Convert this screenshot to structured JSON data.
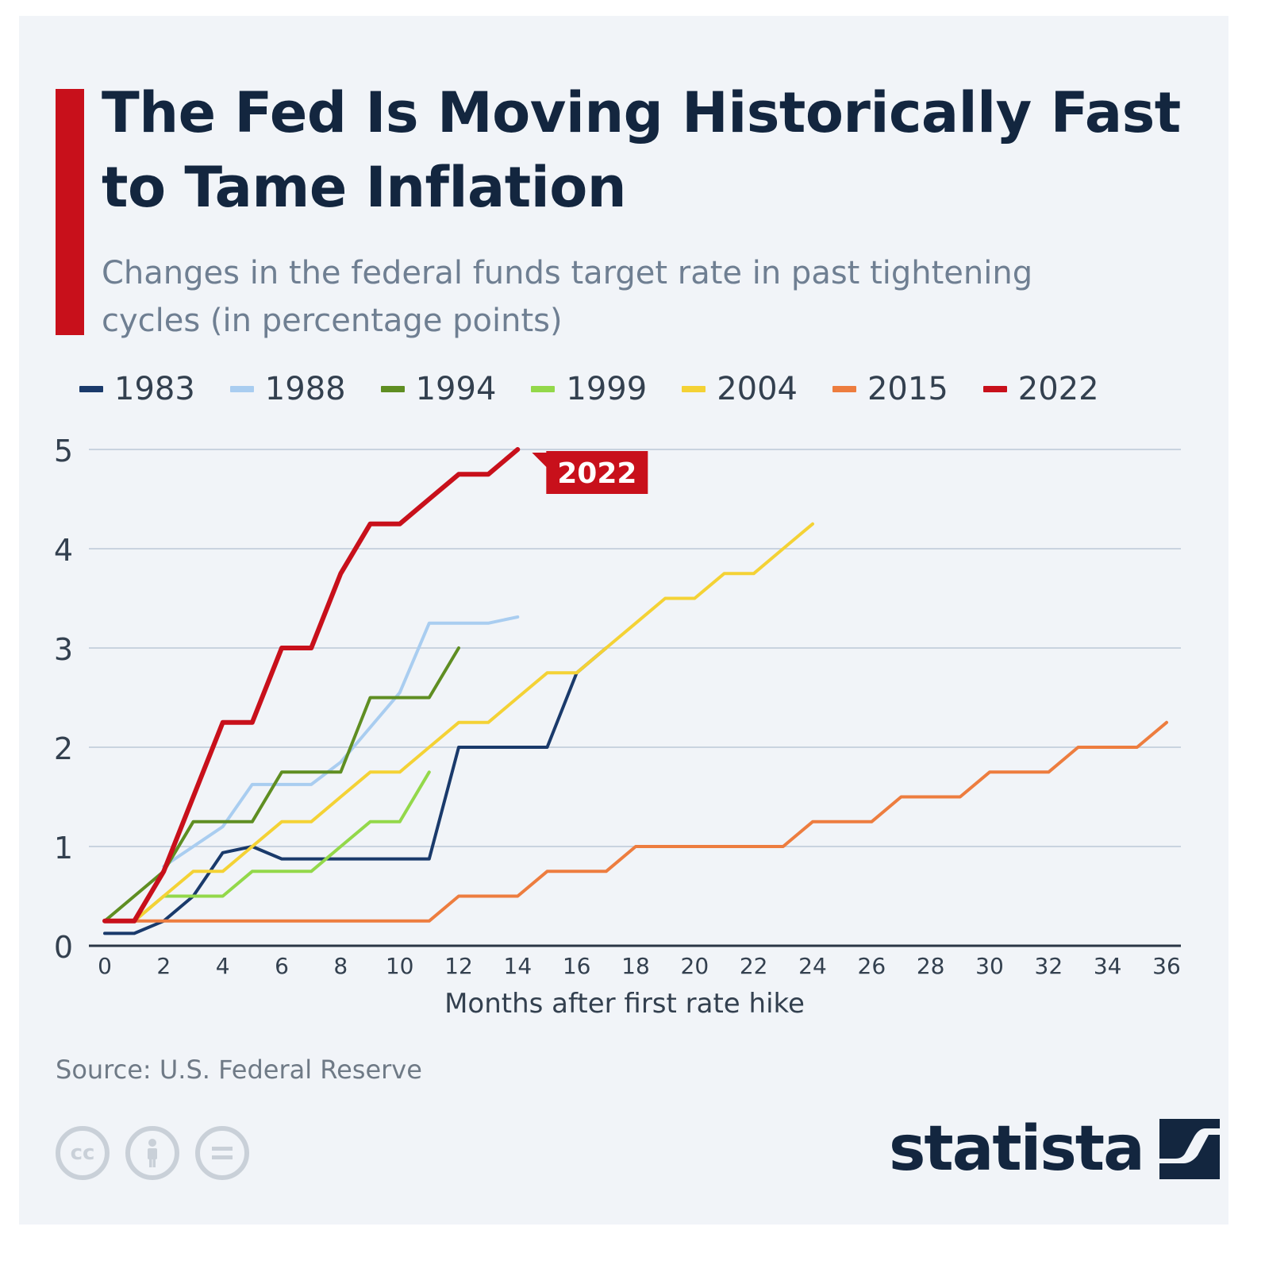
{
  "header": {
    "title": "The Fed Is Moving Historically Fast to Tame Inflation",
    "subtitle": "Changes in the federal funds target rate in past tightening cycles (in percentage points)"
  },
  "footer": {
    "source": "Source: U.S. Federal Reserve",
    "brand": "statista",
    "license_icons": [
      "cc-icon",
      "attribution-icon",
      "no-derivatives-icon"
    ],
    "cc_text": "cc"
  },
  "colors": {
    "accent": "#c8101b",
    "title": "#13263f",
    "grid": "#c9d3df",
    "background": "#f1f4f8"
  },
  "chart_data": {
    "type": "line",
    "xlabel": "Months after first rate hike",
    "ylabel": "",
    "xlim": [
      0,
      36
    ],
    "ylim": [
      0,
      5
    ],
    "xticks": [
      0,
      2,
      4,
      6,
      8,
      10,
      12,
      14,
      16,
      18,
      20,
      22,
      24,
      26,
      28,
      30,
      32,
      34,
      36
    ],
    "yticks": [
      0,
      1,
      2,
      3,
      4,
      5
    ],
    "grid": "horizontal",
    "legend_position": "top",
    "annotation": "2022",
    "series": [
      {
        "name": "1983",
        "color": "#1a3a6b",
        "x": [
          0,
          1,
          2,
          3,
          4,
          5,
          6,
          7,
          8,
          9,
          10,
          11,
          12,
          13,
          14,
          15,
          16,
          17
        ],
        "values": [
          0.125,
          0.125,
          0.25,
          0.5,
          0.9375,
          1.0,
          0.875,
          0.875,
          0.875,
          0.875,
          0.875,
          0.875,
          2.0,
          2.0,
          2.0,
          2.0,
          2.75,
          3.0
        ]
      },
      {
        "name": "1988",
        "color": "#a9cdf0",
        "x": [
          2,
          3,
          4,
          5,
          6,
          7,
          8,
          9,
          10,
          11,
          12,
          13,
          14
        ],
        "values": [
          0.8,
          1.0,
          1.2,
          1.625,
          1.625,
          1.625,
          1.85,
          2.2,
          2.55,
          3.25,
          3.25,
          3.25,
          3.3125
        ]
      },
      {
        "name": "1994",
        "color": "#5f8e22",
        "x": [
          0,
          1,
          2,
          3,
          4,
          5,
          6,
          7,
          8,
          9,
          10,
          11,
          12
        ],
        "values": [
          0.25,
          0.5,
          0.75,
          1.25,
          1.25,
          1.25,
          1.75,
          1.75,
          1.75,
          2.5,
          2.5,
          2.5,
          3.0
        ]
      },
      {
        "name": "1999",
        "color": "#93d84a",
        "x": [
          0,
          1,
          2,
          3,
          4,
          5,
          6,
          7,
          8,
          9,
          10,
          11
        ],
        "values": [
          0.25,
          0.25,
          0.5,
          0.5,
          0.5,
          0.75,
          0.75,
          0.75,
          1.0,
          1.25,
          1.25,
          1.75
        ]
      },
      {
        "name": "2004",
        "color": "#f4d235",
        "x": [
          0,
          1,
          2,
          3,
          4,
          5,
          6,
          7,
          8,
          9,
          10,
          11,
          12,
          13,
          14,
          15,
          16,
          17,
          18,
          19,
          20,
          21,
          22,
          23,
          24
        ],
        "values": [
          0.25,
          0.25,
          0.5,
          0.75,
          0.75,
          1.0,
          1.25,
          1.25,
          1.5,
          1.75,
          1.75,
          2.0,
          2.25,
          2.25,
          2.5,
          2.75,
          2.75,
          3.0,
          3.25,
          3.5,
          3.5,
          3.75,
          3.75,
          4.0,
          4.25
        ]
      },
      {
        "name": "2015",
        "color": "#ed7d3f",
        "x": [
          0,
          1,
          2,
          3,
          4,
          5,
          6,
          7,
          8,
          9,
          10,
          11,
          12,
          13,
          14,
          15,
          16,
          17,
          18,
          19,
          20,
          21,
          22,
          23,
          24,
          25,
          26,
          27,
          28,
          29,
          30,
          31,
          32,
          33,
          34,
          35,
          36
        ],
        "values": [
          0.25,
          0.25,
          0.25,
          0.25,
          0.25,
          0.25,
          0.25,
          0.25,
          0.25,
          0.25,
          0.25,
          0.25,
          0.5,
          0.5,
          0.5,
          0.75,
          0.75,
          0.75,
          1.0,
          1.0,
          1.0,
          1.0,
          1.0,
          1.0,
          1.25,
          1.25,
          1.25,
          1.5,
          1.5,
          1.5,
          1.75,
          1.75,
          1.75,
          2.0,
          2.0,
          2.0,
          2.25
        ]
      },
      {
        "name": "2022",
        "color": "#c8101b",
        "x": [
          0,
          1,
          2,
          3,
          4,
          5,
          6,
          7,
          8,
          9,
          10,
          11,
          12,
          13,
          14
        ],
        "values": [
          0.25,
          0.25,
          0.75,
          1.5,
          2.25,
          2.25,
          3.0,
          3.0,
          3.75,
          4.25,
          4.25,
          4.5,
          4.75,
          4.75,
          5.0
        ]
      }
    ]
  }
}
